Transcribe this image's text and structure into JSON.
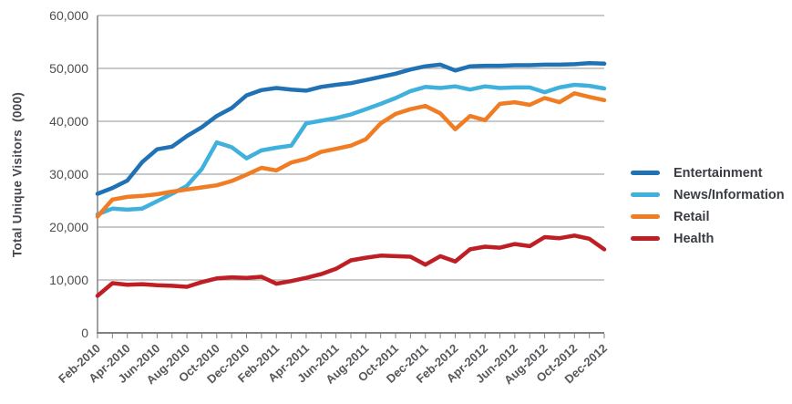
{
  "chart_data": {
    "type": "line",
    "title": "",
    "xlabel": "",
    "ylabel": "Total Unique Visitors  (000)",
    "ylim": [
      0,
      60000
    ],
    "ytick_step": 10000,
    "grid": "horizontal",
    "legend_position": "right",
    "x_label_every": 2,
    "x": [
      "Feb-2010",
      "Mar-2010",
      "Apr-2010",
      "May-2010",
      "Jun-2010",
      "Jul-2010",
      "Aug-2010",
      "Sep-2010",
      "Oct-2010",
      "Nov-2010",
      "Dec-2010",
      "Jan-2011",
      "Feb-2011",
      "Mar-2011",
      "Apr-2011",
      "May-2011",
      "Jun-2011",
      "Jul-2011",
      "Aug-2011",
      "Sep-2011",
      "Oct-2011",
      "Nov-2011",
      "Dec-2011",
      "Jan-2012",
      "Feb-2012",
      "Mar-2012",
      "Apr-2012",
      "May-2012",
      "Jun-2012",
      "Jul-2012",
      "Aug-2012",
      "Sep-2012",
      "Oct-2012",
      "Nov-2012",
      "Dec-2012"
    ],
    "series": [
      {
        "name": "Entertainment",
        "color": "#2171B5",
        "values": [
          26300,
          27400,
          28800,
          32300,
          34700,
          35200,
          37200,
          38900,
          41000,
          42500,
          44900,
          45900,
          46300,
          46000,
          45800,
          46500,
          46900,
          47200,
          47800,
          48400,
          49000,
          49800,
          50400,
          50700,
          49600,
          50400,
          50500,
          50500,
          50600,
          50600,
          50700,
          50700,
          50800,
          51000,
          50900
        ]
      },
      {
        "name": "News/Information",
        "color": "#3FB1DC",
        "values": [
          22400,
          23500,
          23300,
          23500,
          24900,
          26300,
          27800,
          31000,
          36000,
          35100,
          33000,
          34500,
          35000,
          35400,
          39600,
          40100,
          40600,
          41300,
          42300,
          43300,
          44400,
          45700,
          46500,
          46300,
          46600,
          46000,
          46600,
          46300,
          46400,
          46400,
          45500,
          46400,
          46900,
          46700,
          46200
        ]
      },
      {
        "name": "Retail",
        "color": "#F07C23",
        "values": [
          22000,
          25200,
          25700,
          25900,
          26200,
          26700,
          27100,
          27500,
          27900,
          28700,
          29900,
          31200,
          30700,
          32200,
          32900,
          34200,
          34800,
          35400,
          36600,
          39600,
          41400,
          42300,
          42900,
          41500,
          38500,
          41000,
          40200,
          43300,
          43600,
          43100,
          44400,
          43600,
          45300,
          44600,
          44000
        ]
      },
      {
        "name": "Health",
        "color": "#C01E25",
        "values": [
          7000,
          9400,
          9100,
          9200,
          9000,
          8900,
          8700,
          9600,
          10300,
          10500,
          10400,
          10600,
          9300,
          9800,
          10400,
          11100,
          12100,
          13700,
          14200,
          14600,
          14500,
          14400,
          12900,
          14500,
          13500,
          15800,
          16300,
          16100,
          16800,
          16400,
          18100,
          17900,
          18400,
          17800,
          15800
        ]
      }
    ]
  },
  "colors": {
    "gridline": "#A7A9AC",
    "axis": "#808285",
    "y_tick_text": "#4C4E50",
    "x_tick_text": "#56575A"
  }
}
